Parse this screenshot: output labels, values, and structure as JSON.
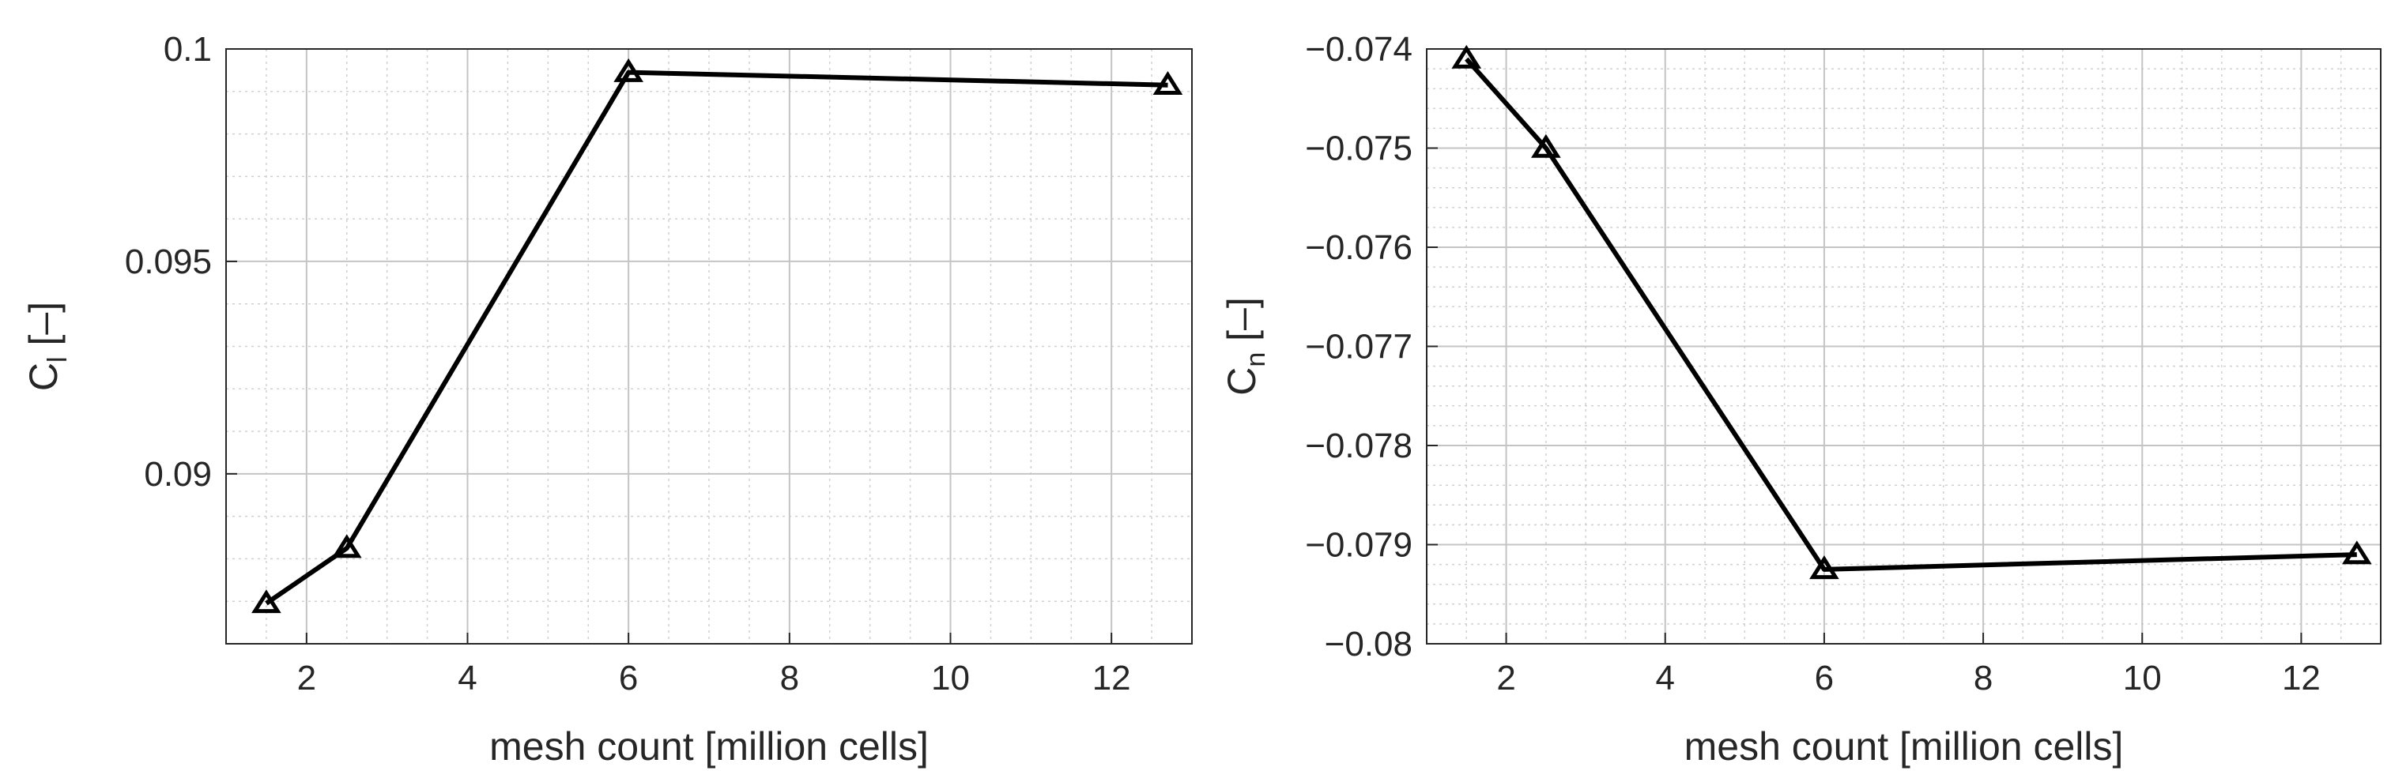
{
  "chart_data": [
    {
      "type": "line",
      "title": "",
      "xlabel": "mesh count [million cells]",
      "ylabel": {
        "main": "C",
        "sub": "l",
        "unit": "  [–]"
      },
      "xlim": [
        1,
        13
      ],
      "ylim": [
        0.086,
        0.1
      ],
      "xticks": [
        2,
        4,
        6,
        8,
        10,
        12
      ],
      "yticks": [
        0.09,
        0.095,
        0.1
      ],
      "ytick_labels": [
        "0.09",
        "0.095",
        "0.1"
      ],
      "x_minor_step": 0.5,
      "y_minor_step": 0.001,
      "grid": true,
      "marker": "triangle-open",
      "line_color": "#000000",
      "series": [
        {
          "x": [
            1.5,
            2.5,
            6.0,
            12.7
          ],
          "y": [
            0.08695,
            0.08825,
            0.09945,
            0.09915
          ]
        }
      ]
    },
    {
      "type": "line",
      "title": "",
      "xlabel": "mesh count [million cells]",
      "ylabel": {
        "main": "C",
        "sub": "n",
        "unit": "  [–]"
      },
      "xlim": [
        1,
        13
      ],
      "ylim": [
        -0.08,
        -0.074
      ],
      "xticks": [
        2,
        4,
        6,
        8,
        10,
        12
      ],
      "yticks": [
        -0.08,
        -0.079,
        -0.078,
        -0.077,
        -0.076,
        -0.075,
        -0.074
      ],
      "ytick_labels": [
        "−0.08",
        "−0.079",
        "−0.078",
        "−0.077",
        "−0.076",
        "−0.075",
        "−0.074"
      ],
      "x_minor_step": 0.5,
      "y_minor_step": 0.0002,
      "grid": true,
      "marker": "triangle-open",
      "line_color": "#000000",
      "series": [
        {
          "x": [
            1.5,
            2.5,
            6.0,
            12.7
          ],
          "y": [
            -0.0741,
            -0.075,
            -0.07925,
            -0.0791
          ]
        }
      ]
    }
  ]
}
